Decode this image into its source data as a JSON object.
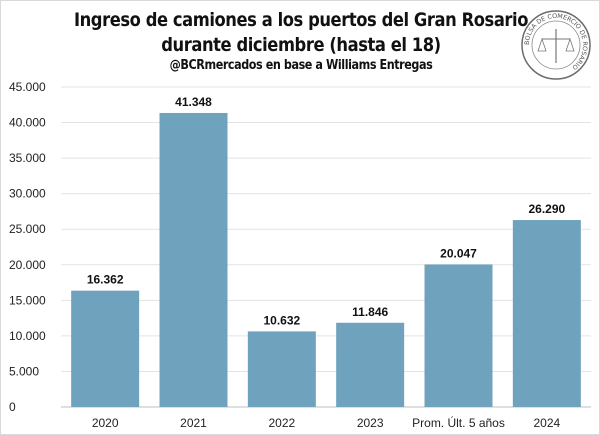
{
  "chart_data": {
    "type": "bar",
    "title": "Ingreso de camiones a los puertos del Gran Rosario",
    "subtitle": "durante diciembre (hasta el 18)",
    "source": "@BCRmercados en base a Williams Entregas",
    "logo_text": "BOLSA DE COMERCIO DE ROSARIO",
    "categories": [
      "2020",
      "2021",
      "2022",
      "2023",
      "Prom. Últ. 5 años",
      "2024"
    ],
    "values": [
      16362,
      41348,
      10632,
      11846,
      20047,
      26290
    ],
    "value_labels": [
      "16.362",
      "41.348",
      "10.632",
      "11.846",
      "20.047",
      "26.290"
    ],
    "yticks": [
      0,
      5000,
      10000,
      15000,
      20000,
      25000,
      30000,
      35000,
      40000,
      45000
    ],
    "ytick_labels": [
      "0",
      "5.000",
      "10.000",
      "15.000",
      "20.000",
      "25.000",
      "30.000",
      "35.000",
      "40.000",
      "45.000"
    ],
    "ylim": [
      0,
      45000
    ],
    "xlabel": "",
    "ylabel": "",
    "grid": true,
    "bar_color": "#6fa3bd"
  }
}
